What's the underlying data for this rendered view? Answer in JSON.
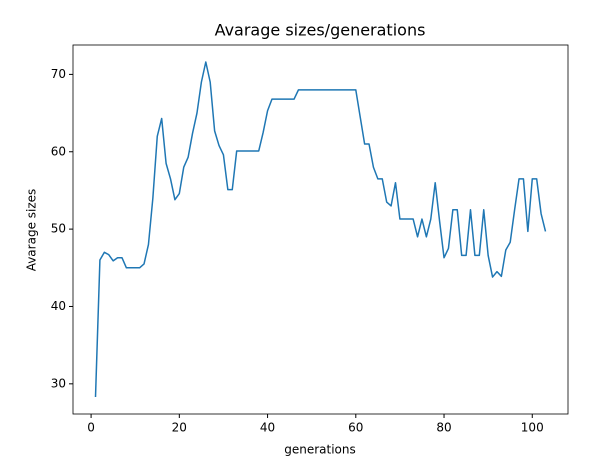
{
  "chart_data": {
    "type": "line",
    "title": "Avarage sizes/generations",
    "xlabel": "generations",
    "ylabel": "Avarage sizes",
    "x": [
      1,
      2,
      3,
      4,
      5,
      6,
      7,
      8,
      9,
      10,
      11,
      12,
      13,
      14,
      15,
      16,
      17,
      18,
      19,
      20,
      21,
      22,
      23,
      24,
      25,
      26,
      27,
      28,
      29,
      30,
      31,
      32,
      33,
      34,
      35,
      36,
      37,
      38,
      39,
      40,
      41,
      42,
      43,
      44,
      45,
      46,
      47,
      48,
      49,
      50,
      51,
      52,
      53,
      54,
      55,
      56,
      57,
      58,
      59,
      60,
      61,
      62,
      63,
      64,
      65,
      66,
      67,
      68,
      69,
      70,
      71,
      72,
      73,
      74,
      75,
      76,
      77,
      78,
      79,
      80,
      81,
      82,
      83,
      84,
      85,
      86,
      87,
      88,
      89,
      90,
      91,
      92,
      93,
      94,
      95,
      96,
      97,
      98,
      99,
      100,
      101,
      102,
      103
    ],
    "series": [
      {
        "color": "#1f77b4",
        "values": [
          28.3,
          46,
          47,
          46.7,
          45.9,
          46.3,
          46.3,
          45,
          45,
          45,
          45,
          45.5,
          48,
          54,
          62,
          64.3,
          58.5,
          56.5,
          53.8,
          54.6,
          58,
          59.3,
          62.4,
          65,
          69,
          71.6,
          69,
          62.7,
          60.8,
          59.6,
          55.1,
          55.1,
          60.1,
          60.1,
          60.1,
          60.1,
          60.1,
          60.1,
          62.5,
          65.3,
          66.8,
          66.8,
          66.8,
          66.8,
          66.8,
          66.8,
          68,
          68,
          68,
          68,
          68,
          68,
          68,
          68,
          68,
          68,
          68,
          68,
          68,
          68,
          64.5,
          61,
          61,
          58,
          56.5,
          56.5,
          53.5,
          53,
          56,
          51.3,
          51.3,
          51.3,
          51.3,
          49,
          51.3,
          49,
          51.3,
          56,
          51,
          46.3,
          47.5,
          52.5,
          52.5,
          46.6,
          46.6,
          52.5,
          46.6,
          46.6,
          52.5,
          46.6,
          43.8,
          44.5,
          43.9,
          47.3,
          48.3,
          52.5,
          56.5,
          56.5,
          49.7,
          56.5,
          56.5,
          52,
          49.7
        ]
      }
    ],
    "xlim": [
      -4.1,
      108.1
    ],
    "ylim": [
      26.1,
      73.8
    ],
    "xticks": [
      0,
      20,
      40,
      60,
      80,
      100
    ],
    "yticks": [
      30,
      40,
      50,
      60,
      70
    ],
    "grid": false
  }
}
